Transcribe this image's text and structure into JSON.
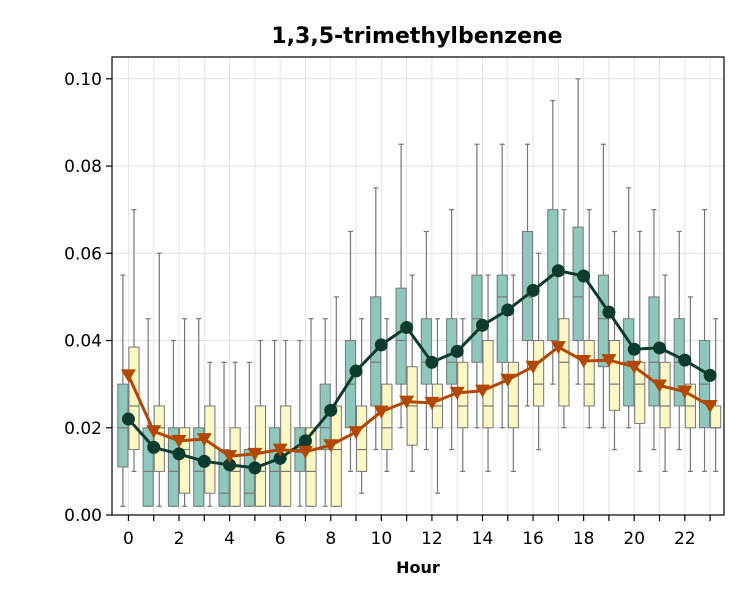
{
  "chart_data": {
    "type": "box",
    "title": "1,3,5-trimethylbenzene",
    "xlabel": "Hour",
    "ylabel": "",
    "xlim": [
      -0.65,
      23.55
    ],
    "ylim": [
      0.0,
      0.105
    ],
    "grid": true,
    "x_ticks": [
      0,
      2,
      4,
      6,
      8,
      10,
      12,
      14,
      16,
      18,
      20,
      22
    ],
    "y_ticks": [
      {
        "v": 0.0,
        "label": "0.00"
      },
      {
        "v": 0.02,
        "label": "0.02"
      },
      {
        "v": 0.04,
        "label": "0.04"
      },
      {
        "v": 0.06,
        "label": "0.06"
      },
      {
        "v": 0.08,
        "label": "0.08"
      },
      {
        "v": 0.1,
        "label": "0.10"
      }
    ],
    "hours": [
      0,
      1,
      2,
      3,
      4,
      5,
      6,
      7,
      8,
      9,
      10,
      11,
      12,
      13,
      14,
      15,
      16,
      17,
      18,
      19,
      20,
      21,
      22,
      23
    ],
    "series": [
      {
        "box_color": "#8ec8bc",
        "line_color": "#0d3b2e",
        "marker": "circle",
        "boxes": [
          {
            "whislo": 0.002,
            "q1": 0.011,
            "med": 0.02,
            "q3": 0.03,
            "whishi": 0.055
          },
          {
            "whislo": 0.002,
            "q1": 0.002,
            "med": 0.01,
            "q3": 0.02,
            "whishi": 0.045
          },
          {
            "whislo": 0.002,
            "q1": 0.002,
            "med": 0.01,
            "q3": 0.02,
            "whishi": 0.04
          },
          {
            "whislo": 0.002,
            "q1": 0.002,
            "med": 0.01,
            "q3": 0.02,
            "whishi": 0.045
          },
          {
            "whislo": 0.002,
            "q1": 0.002,
            "med": 0.005,
            "q3": 0.015,
            "whishi": 0.035
          },
          {
            "whislo": 0.002,
            "q1": 0.002,
            "med": 0.005,
            "q3": 0.015,
            "whishi": 0.035
          },
          {
            "whislo": 0.002,
            "q1": 0.002,
            "med": 0.01,
            "q3": 0.02,
            "whishi": 0.04
          },
          {
            "whislo": 0.002,
            "q1": 0.01,
            "med": 0.015,
            "q3": 0.02,
            "whishi": 0.04
          },
          {
            "whislo": 0.002,
            "q1": 0.015,
            "med": 0.02,
            "q3": 0.03,
            "whishi": 0.045
          },
          {
            "whislo": 0.01,
            "q1": 0.02,
            "med": 0.03,
            "q3": 0.04,
            "whishi": 0.065
          },
          {
            "whislo": 0.015,
            "q1": 0.025,
            "med": 0.035,
            "q3": 0.05,
            "whishi": 0.075
          },
          {
            "whislo": 0.02,
            "q1": 0.03,
            "med": 0.04,
            "q3": 0.052,
            "whishi": 0.085
          },
          {
            "whislo": 0.015,
            "q1": 0.03,
            "med": 0.035,
            "q3": 0.045,
            "whishi": 0.065
          },
          {
            "whislo": 0.015,
            "q1": 0.03,
            "med": 0.035,
            "q3": 0.045,
            "whishi": 0.07
          },
          {
            "whislo": 0.02,
            "q1": 0.035,
            "med": 0.045,
            "q3": 0.055,
            "whishi": 0.085
          },
          {
            "whislo": 0.02,
            "q1": 0.035,
            "med": 0.05,
            "q3": 0.055,
            "whishi": 0.085
          },
          {
            "whislo": 0.025,
            "q1": 0.04,
            "med": 0.05,
            "q3": 0.065,
            "whishi": 0.085
          },
          {
            "whislo": 0.03,
            "q1": 0.04,
            "med": 0.055,
            "q3": 0.07,
            "whishi": 0.095
          },
          {
            "whislo": 0.03,
            "q1": 0.04,
            "med": 0.05,
            "q3": 0.066,
            "whishi": 0.1
          },
          {
            "whislo": 0.02,
            "q1": 0.034,
            "med": 0.045,
            "q3": 0.055,
            "whishi": 0.085
          },
          {
            "whislo": 0.02,
            "q1": 0.025,
            "med": 0.035,
            "q3": 0.045,
            "whishi": 0.075
          },
          {
            "whislo": 0.015,
            "q1": 0.025,
            "med": 0.035,
            "q3": 0.05,
            "whishi": 0.07
          },
          {
            "whislo": 0.015,
            "q1": 0.025,
            "med": 0.035,
            "q3": 0.045,
            "whishi": 0.065
          },
          {
            "whislo": 0.01,
            "q1": 0.02,
            "med": 0.03,
            "q3": 0.04,
            "whishi": 0.07
          }
        ],
        "line": [
          0.022,
          0.0155,
          0.014,
          0.0123,
          0.0115,
          0.0108,
          0.013,
          0.017,
          0.024,
          0.033,
          0.039,
          0.043,
          0.035,
          0.0375,
          0.0435,
          0.047,
          0.0515,
          0.056,
          0.0548,
          0.0465,
          0.038,
          0.0383,
          0.0355,
          0.032
        ]
      },
      {
        "box_color": "#fbf8c4",
        "line_color": "#b34700",
        "marker": "triangle-down",
        "boxes": [
          {
            "whislo": 0.01,
            "q1": 0.015,
            "med": 0.025,
            "q3": 0.0385,
            "whishi": 0.07
          },
          {
            "whislo": 0.002,
            "q1": 0.01,
            "med": 0.02,
            "q3": 0.025,
            "whishi": 0.06
          },
          {
            "whislo": 0.002,
            "q1": 0.005,
            "med": 0.015,
            "q3": 0.02,
            "whishi": 0.045
          },
          {
            "whislo": 0.002,
            "q1": 0.005,
            "med": 0.012,
            "q3": 0.025,
            "whishi": 0.035
          },
          {
            "whislo": 0.002,
            "q1": 0.002,
            "med": 0.01,
            "q3": 0.02,
            "whishi": 0.035
          },
          {
            "whislo": 0.002,
            "q1": 0.002,
            "med": 0.01,
            "q3": 0.025,
            "whishi": 0.04
          },
          {
            "whislo": 0.002,
            "q1": 0.002,
            "med": 0.01,
            "q3": 0.025,
            "whishi": 0.04
          },
          {
            "whislo": 0.002,
            "q1": 0.002,
            "med": 0.01,
            "q3": 0.02,
            "whishi": 0.045
          },
          {
            "whislo": 0.002,
            "q1": 0.002,
            "med": 0.015,
            "q3": 0.025,
            "whishi": 0.05
          },
          {
            "whislo": 0.005,
            "q1": 0.01,
            "med": 0.015,
            "q3": 0.025,
            "whishi": 0.045
          },
          {
            "whislo": 0.01,
            "q1": 0.015,
            "med": 0.02,
            "q3": 0.03,
            "whishi": 0.045
          },
          {
            "whislo": 0.01,
            "q1": 0.016,
            "med": 0.025,
            "q3": 0.034,
            "whishi": 0.055
          },
          {
            "whislo": 0.005,
            "q1": 0.02,
            "med": 0.025,
            "q3": 0.03,
            "whishi": 0.045
          },
          {
            "whislo": 0.01,
            "q1": 0.02,
            "med": 0.025,
            "q3": 0.035,
            "whishi": 0.045
          },
          {
            "whislo": 0.01,
            "q1": 0.02,
            "med": 0.025,
            "q3": 0.04,
            "whishi": 0.055
          },
          {
            "whislo": 0.01,
            "q1": 0.02,
            "med": 0.025,
            "q3": 0.035,
            "whishi": 0.055
          },
          {
            "whislo": 0.015,
            "q1": 0.025,
            "med": 0.03,
            "q3": 0.04,
            "whishi": 0.06
          },
          {
            "whislo": 0.02,
            "q1": 0.025,
            "med": 0.035,
            "q3": 0.045,
            "whishi": 0.07
          },
          {
            "whislo": 0.02,
            "q1": 0.025,
            "med": 0.03,
            "q3": 0.04,
            "whishi": 0.07
          },
          {
            "whislo": 0.015,
            "q1": 0.024,
            "med": 0.03,
            "q3": 0.04,
            "whishi": 0.065
          },
          {
            "whislo": 0.01,
            "q1": 0.021,
            "med": 0.03,
            "q3": 0.035,
            "whishi": 0.065
          },
          {
            "whislo": 0.01,
            "q1": 0.02,
            "med": 0.025,
            "q3": 0.035,
            "whishi": 0.055
          },
          {
            "whislo": 0.01,
            "q1": 0.02,
            "med": 0.025,
            "q3": 0.03,
            "whishi": 0.05
          },
          {
            "whislo": 0.01,
            "q1": 0.02,
            "med": 0.02,
            "q3": 0.025,
            "whishi": 0.045
          }
        ],
        "line": [
          0.032,
          0.0192,
          0.017,
          0.0174,
          0.0135,
          0.014,
          0.015,
          0.0145,
          0.016,
          0.019,
          0.0237,
          0.026,
          0.0257,
          0.028,
          0.0285,
          0.031,
          0.034,
          0.0385,
          0.0353,
          0.0355,
          0.034,
          0.0297,
          0.0283,
          0.025
        ]
      }
    ]
  }
}
